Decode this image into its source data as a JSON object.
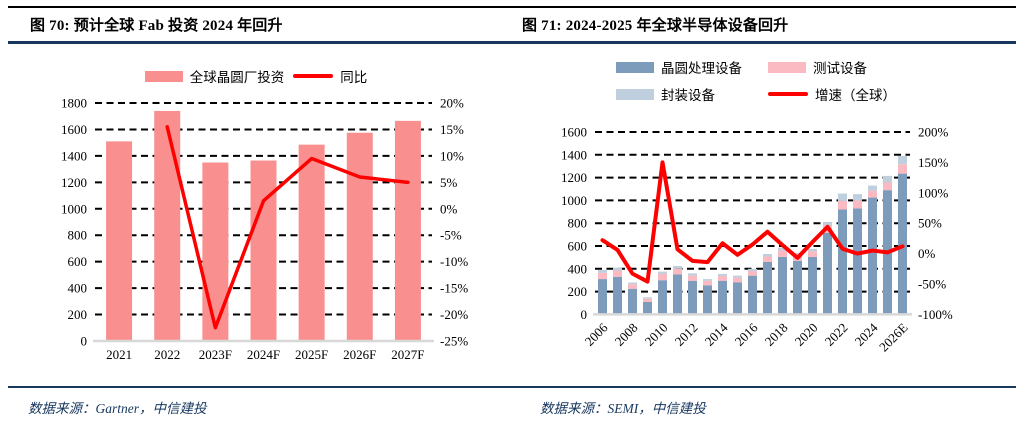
{
  "accent_navy": "#17375e",
  "figures": [
    {
      "title": "图 70: 预计全球 Fab 投资 2024 年回升",
      "source": "数据来源：Gartner，中信建投"
    },
    {
      "title": "图 71: 2024-2025 年全球半导体设备回升",
      "source": "数据来源：SEMI，中信建投"
    }
  ],
  "chart_data": [
    {
      "type": "bar",
      "title": "预计全球 Fab 投资 2024 年回升",
      "categories": [
        "2021",
        "2022",
        "2023F",
        "2024F",
        "2025F",
        "2026F",
        "2027F"
      ],
      "series": [
        {
          "name": "全球晶圆厂投资",
          "kind": "bar",
          "color": "#f9908f",
          "values": [
            1510,
            1740,
            1350,
            1365,
            1485,
            1575,
            1665
          ]
        },
        {
          "name": "同比",
          "kind": "line",
          "color": "#fe0000",
          "axis": "right",
          "values": [
            null,
            15.5,
            -22.5,
            1.5,
            9.5,
            6,
            5
          ]
        }
      ],
      "left_axis": {
        "min": 0,
        "max": 1800,
        "suffix": "",
        "ticks": [
          0,
          200,
          400,
          600,
          800,
          1000,
          1200,
          1400,
          1600,
          1800
        ]
      },
      "right_axis": {
        "min": -25,
        "max": 20,
        "suffix": "%",
        "ticks": [
          -25,
          -20,
          -15,
          -10,
          -5,
          0,
          5,
          10,
          15,
          20
        ]
      },
      "grid": "dashed-black",
      "legend_position": "top"
    },
    {
      "type": "bar",
      "stacked": true,
      "title": "2024-2025 年全球半导体设备回升",
      "categories": [
        "2006",
        "2007",
        "2008",
        "2009",
        "2010",
        "2011",
        "2012",
        "2013",
        "2014",
        "2015",
        "2016",
        "2017",
        "2018",
        "2019",
        "2020",
        "2021",
        "2022",
        "2023",
        "2024",
        "2025",
        "2026E"
      ],
      "x_tick_labels": [
        "2006",
        "2008",
        "2010",
        "2012",
        "2014",
        "2016",
        "2018",
        "2020",
        "2022",
        "2024",
        "2026E"
      ],
      "x_tick_step": 2,
      "series": [
        {
          "name": "晶圆处理设备",
          "kind": "bar",
          "color": "#7d9cbb",
          "values": [
            310,
            330,
            225,
            110,
            300,
            350,
            295,
            255,
            295,
            282,
            340,
            460,
            505,
            470,
            505,
            715,
            920,
            930,
            1025,
            1090,
            1235
          ]
        },
        {
          "name": "测试设备",
          "kind": "bar",
          "color": "#fbb9c1",
          "values": [
            55,
            55,
            40,
            28,
            55,
            50,
            45,
            40,
            42,
            40,
            40,
            48,
            55,
            48,
            48,
            65,
            75,
            70,
            60,
            67,
            82
          ]
        },
        {
          "name": "封装设备",
          "kind": "bar",
          "color": "#bfcfdd",
          "values": [
            25,
            25,
            15,
            12,
            20,
            25,
            20,
            15,
            18,
            18,
            20,
            22,
            25,
            22,
            22,
            30,
            65,
            55,
            45,
            58,
            73
          ]
        },
        {
          "name": "增速（全球）",
          "kind": "line",
          "color": "#fe0000",
          "axis": "right",
          "values": [
            22,
            6,
            -33,
            -46,
            150,
            7,
            -12,
            -14,
            17,
            -2,
            15,
            36,
            14,
            -7,
            19,
            44,
            8,
            0,
            5,
            2,
            12
          ]
        }
      ],
      "left_axis": {
        "min": 0,
        "max": 1600,
        "suffix": "",
        "ticks": [
          0,
          200,
          400,
          600,
          800,
          1000,
          1200,
          1400,
          1600
        ]
      },
      "right_axis": {
        "min": -100,
        "max": 200,
        "suffix": "%",
        "ticks": [
          -100,
          -50,
          0,
          50,
          100,
          150,
          200
        ]
      },
      "grid": "dashed-black",
      "legend_position": "top"
    }
  ]
}
